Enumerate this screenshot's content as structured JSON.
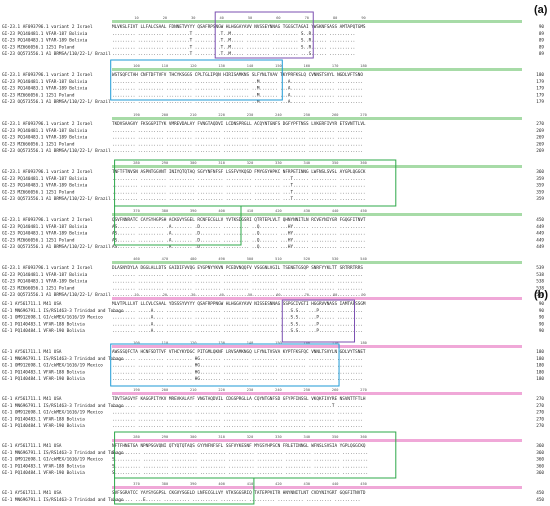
{
  "panels": [
    {
      "label": "(a)",
      "seq_names": [
        "GI-23.1 AF093796.1 variant 2 Israel",
        "GI-23 PQ140481.1 VFAR-187 Bolivia",
        "GI-23 PQ140483.1 VFAR-189 Bolivia",
        "GI-23 MZ666056.1 1251 Poland",
        "GI-23 OQ573556.1 A1 BRMSA/110/22-1/ Brazil"
      ],
      "blocks": [
        {
          "ends": [
            "90",
            "89",
            "89",
            "89",
            "89"
          ],
          "rows": [
            "MLVKSLFIVT LLFALCSAAL FDNNETVYYY QSAFRPSNGW HLHGGAYAVV NVSSEYNNAG TGGSCTAGAI YWSKNFSASS AMTAPQTGMS",
            "......... .......... .........T ........ .T..M..... ......... .......... S..R...... ..........",
            "......... .......... .........T ........ .T..M..... ......... .......... S..R...... ..........",
            "......... .......... .........T ........ .T..M..... ......... .......... S..R...... ..........",
            "......... .......... .........T ........ .T..M..... ......... .......... ...S...... .........."
          ]
        },
        {
          "ends": [
            "180",
            "179",
            "179",
            "179",
            "179"
          ],
          "rows": [
            "WSTSQFCTAH CNFTDFTVFV THCYKSGGS CPLTGLIPQN HIRISAMKNS SLFYNLTVAV TKYPRFKSLQ CVNNSTSVYL NGDLVFTSNO",
            "......... .......... .......... .......... .......... ..M....... ...A...... .......... ..........",
            "......... .......... .......... .......... .......... ..M....... ...A...... .......... ..........",
            "......... .......... .......... .......... .......... ..M....... ...A...... .......... ..........",
            "......... .......... .......... .......... .......... ..M....... ...A...... .......... .........."
          ]
        },
        {
          "ends": [
            "270",
            "269",
            "269",
            "269",
            "269"
          ],
          "rows": [
            "TKDVSAAGVY FKSGGPITYK VMREVDALAY FVNGTAQDVI LCDNSPRGLL ACQYNTGNFS DGFYPFTNSS LVKERFIVYR ETSVNTTLVL",
            "......... .......... .......... .......... .......... .......... .......... .......... ..........",
            "......... .......... .......... .......... .......... .......... .......... .......... ..........",
            "......... .......... .......... .......... .......... .......... .......... .......... ..........",
            "......... .......... .......... .......... .......... .......... .......... .......... .........."
          ]
        },
        {
          "ends": [
            "360",
            "359",
            "359",
            "359",
            "359"
          ],
          "rows": [
            "TNFTFTNVSN ASPNTGGVNT INIYQTQTAQ SGYYNFNFSF LSSFVYKQSD FMYGSYHPKC NFRPETINNG LWFNSLSVSL AYGPLQGGCK",
            ".......... .......... .......... .......... .......... .......... ...T...... .......... ..........",
            ".......... .......... .......... .......... .......... .......... ...T...... .......... ..........",
            ".......... .......... .......... .......... .......... .......... ...T...... .......... ..........",
            ".......... .......... .......... .......... .......... .......... ...T...... .......... .........."
          ]
        },
        {
          "ends": [
            "450",
            "449",
            "449",
            "449",
            "449"
          ],
          "rows": [
            "QSVFNNRATC CAYSYHGPSH ACKGVYSGEL RCNFECGLLV YVTKSDGSRI QTRTEPLVLT QHNYNNITLN RCVEYNIYGR FGQGFITNVT",
            "AS.......  .......... .A........ .D........ .......... ..Q....... ...HY...... .......... ..........",
            "AS.......  .......... .A........ .D........ .......... ..Q....... ...HY...... .......... ..........",
            "AS.......  .......... .A........ .D........ .......... ..Q....... ...HY...... .......... ..........",
            "AS.......  .......... .A........ .D........ .......... ..Q....... ...HY...... .......... .........."
          ]
        },
        {
          "ends": [
            "539",
            "538",
            "538",
            "538",
            "538"
          ],
          "rows": [
            "DLASNYDYLA DGGLALLDTS GAIDIFVVQG EYGPNYYKVN PCEDVNQQFV VSGGNLVGIL TSENETGSQP SNRFYYKLTT SRTRRTRRS",
            "......... .......... .......... .......... .......... .......... .......... .......... ..........",
            "......... .......... .......... .......... .......... .......... .......... .......... ..........",
            "......... .......... .......... .......... .......... .......... .......... .......... ..........",
            "......... .......... .......... .......... .......... .......... .......... .......... .........."
          ]
        }
      ]
    },
    {
      "label": "(b)",
      "seq_names": [
        "GI-1 AY561711.1 M41 USA",
        "GI-1 MN696791.1 IS/RS1463-3 Trinidad and Tobago",
        "GI-1 OM912698.1 GI/ckMEX/1616/19 Mexico",
        "GI-1 PQ140483.1 VFAR-188 Bolivia",
        "GI-1 PQ140484.1 VFAR-190 Bolivia"
      ],
      "blocks": [
        {
          "ends": [
            "90",
            "90",
            "90",
            "90",
            "90"
          ],
          "rows": [
            "MLVTPLLLVT LLCVLCSAAL YDSSSYVYYY QSAFRPPNGW HLHGGAYAVV NISSESNNAG SSPGCIVGTI HGGRVVNASS IAMTAPSSGM",
            "......... .....A.... .......... .......... .......... .......... ....S.S... ...P...... ..........",
            "......... .....A.... .......... .......... .......... .......... ....S.S... ...P...... ..........",
            "......... .....A.... .......... .......... .......... .......... ....S.S... ...P...... ..........",
            "......... .....A.... .......... .......... .......... .......... ....S.S... ...P...... .........."
          ]
        },
        {
          "ends": [
            "180",
            "180",
            "180",
            "180",
            "180"
          ],
          "rows": [
            "AWSSSQFCTA HCNFSDTTVF VTHCYKYDGC PITGMLQKNF LRVSAMKNGQ LFYNLTVSVA KYPTFKSFQC VNNLTSVYLN GDLVYTSNET",
            "......... .......... .......... HG........ .......... .......... .......... .......... ..........",
            "......... .......... .......... HG........ .......... .......... .......... .......... ..........",
            "......... .......... .......... HG........ .......... .......... .......... .......... ..........",
            "......... .......... .......... HG........ .......... .......... .......... .......... .........."
          ]
        },
        {
          "ends": [
            "270",
            "270",
            "270",
            "270",
            "270"
          ],
          "rows": [
            "TDVTSAGVYF KAGGPITYKV MREVKALAYF VNGTAQDVIL CDGSPRGLLA CQYNTGNFSD GFYPFINSSL VKQKFIVYRE NSVNTTFTLH",
            "......... .......... .......... .......... .......... .......... .......... .........T ..........",
            "......... .......... .......... .......... .......... .......... .......... .......... ..........",
            "......... .......... .......... .......... .......... .......... .......... .......... ..........",
            "......... .......... .......... .......... .......... .......... .......... .......... .........."
          ]
        },
        {
          "ends": [
            "360",
            "360",
            "360",
            "360",
            "360"
          ],
          "rows": [
            "NFTFHNETGA NPNPSGVQNI QTYQTQTAQS GYYNFNFSFL SSFVYKESNF MYGSYHPSCN FRLETINNGL WFNSLSVSIA YGPLQGGCKQ",
            "S.......... .......... .......... .......... .......... .......... .......... .......... ..........",
            "S.......... .......... .......... .......... .......... .......... .......... .......... ..........",
            "S.......... .......... .......... .......... .......... .......... .......... .......... ..........",
            "S.......... .......... .......... .......... .......... .......... .......... .......... .........."
          ]
        },
        {
          "ends": [
            "450",
            "450",
            "450",
            "450",
            "450"
          ],
          "rows": [
            "SVFSGRATCC YAYSYGGPSL CKGVYSGELD LNFECGLLVY VTKSGGSRIQ TATEPPVITR HNYNNITLNT CVDYNIYGRT GQGFITNVTD",
            "........ ...E...... .......... .......... .......... .......... .......... .......... ..........",
            "........ ...E...... .......... .......... .......... .......... .......... .......... ..........",
            "........ ...E...... .......... .......... .......... .......... .......... .......... ..........",
            "........ ...E...... .......... .......... .......... .......... .......... .......... .........."
          ]
        },
        {
          "ends": [
            "537",
            "537",
            "537",
            "537",
            "537"
          ],
          "rows": [
            "SAVSYNYLAD AGLAILDTSG SIDIFVVQGE YGLTYYKVNP CEDVNQQFVV SGGKLVGILT SRNETGSQLL ENQFYIKITN GTRRFRR",
            "......... .......... .......... .......... .......... .......... .......... .......... ........R",
            "......... .......... .......... .......... .......... .......... .......... .......... .......",
            "......... .......... .......... .......... .......... .......... .......... .......... .......",
            "......... .......... .......... .......... .......... .......... .......... .......... ......."
          ]
        }
      ]
    }
  ],
  "colors": {
    "hvr1_box": "#7b4fb0",
    "hvr2_box": "#1e9ad6",
    "hvr3_box": "#2da84a",
    "ruler_a": "#a7dba7",
    "ruler_b": "#f0a8d8",
    "highlight": "#f5b7b1",
    "residue_text": "#c0392b"
  }
}
